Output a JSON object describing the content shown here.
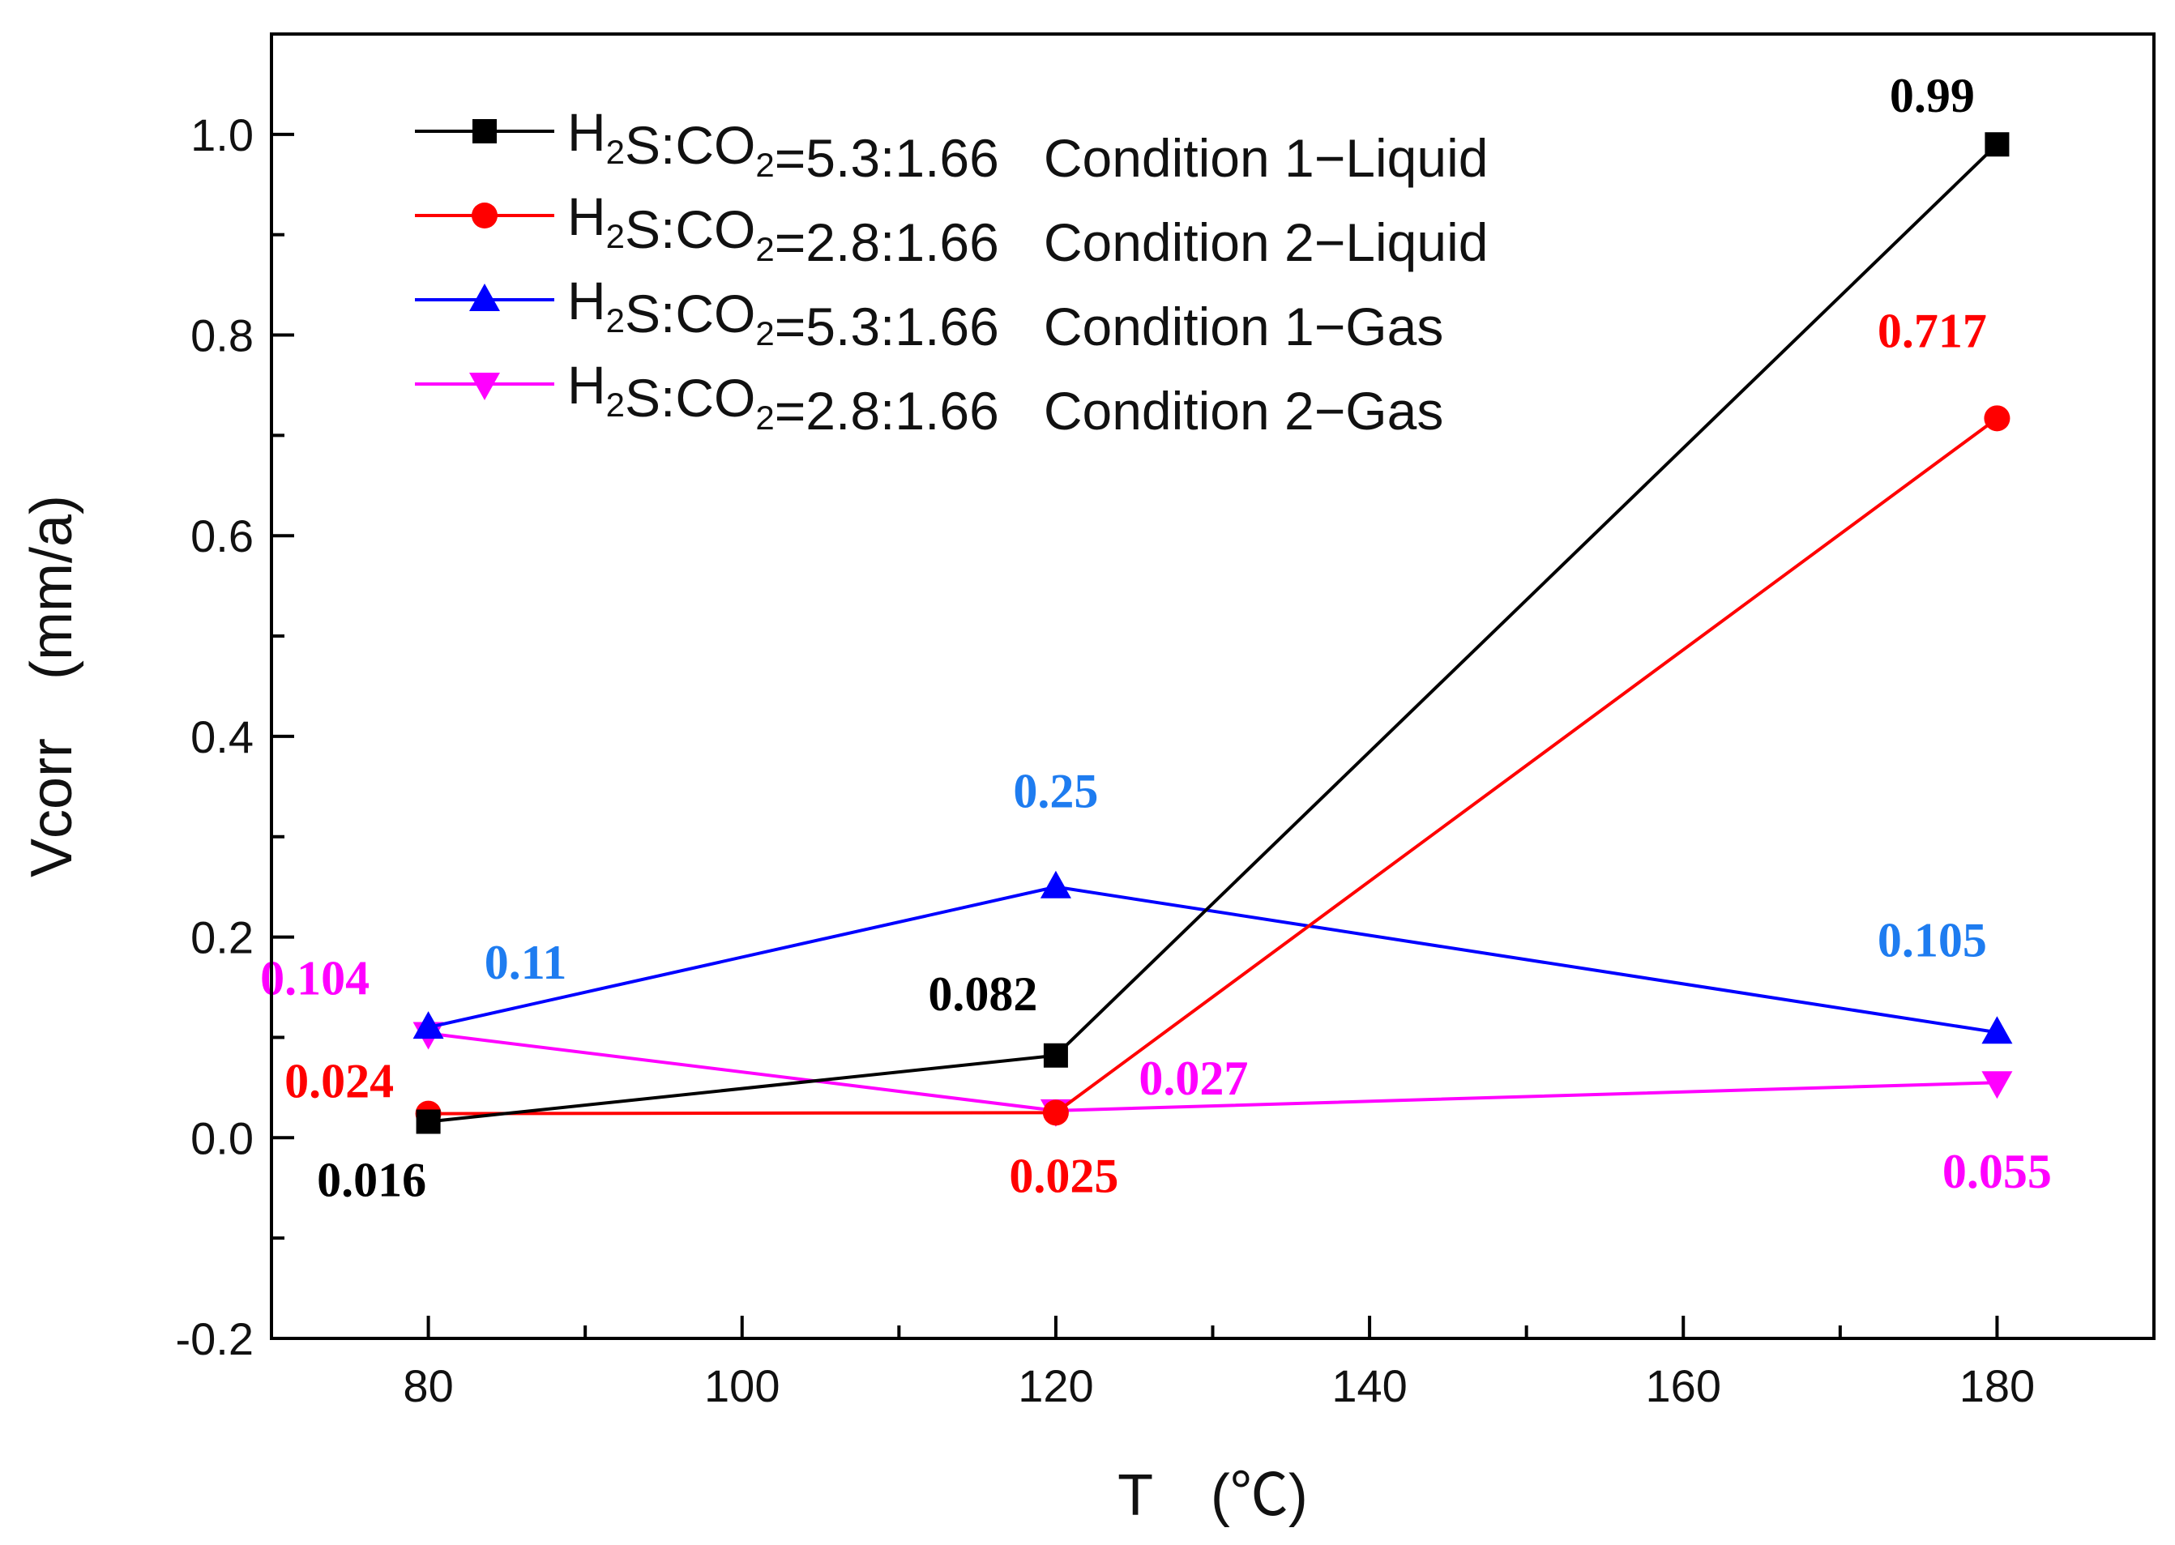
{
  "chart_data": {
    "type": "line",
    "title": "",
    "xlabel": "T　(℃)",
    "ylabel": "Vcorr　(mm/a)",
    "xlim": [
      70,
      190
    ],
    "ylim": [
      -0.2,
      1.1
    ],
    "xticks": [
      80,
      100,
      120,
      140,
      160,
      180
    ],
    "xtick_labels": [
      "80",
      "100",
      "120",
      "140",
      "160",
      "180"
    ],
    "yticks": [
      -0.2,
      0.0,
      0.2,
      0.4,
      0.6,
      0.8,
      1.0
    ],
    "ytick_labels": [
      "-0.2",
      "0.0",
      "0.2",
      "0.4",
      "0.6",
      "0.8",
      "1.0"
    ],
    "legend_position": "top-left",
    "x": [
      80,
      120,
      180
    ],
    "series": [
      {
        "name": "H2S:CO2=5.3:1.66   Condition 1−Liquid",
        "gas_ratio": "5.3:1.66",
        "condition": "Condition 1−Liquid",
        "color": "#000000",
        "label_color": "#000000",
        "marker": "square",
        "values": [
          0.016,
          0.082,
          0.99
        ],
        "labels": [
          "0.016",
          "0.082",
          "0.99"
        ]
      },
      {
        "name": "H2S:CO2=2.8:1.66   Condition 2−Liquid",
        "gas_ratio": "2.8:1.66",
        "condition": "Condition 2−Liquid",
        "color": "#ff0000",
        "label_color": "#ff0000",
        "marker": "circle",
        "values": [
          0.024,
          0.025,
          0.717
        ],
        "labels": [
          "0.024",
          "0.025",
          "0.717"
        ]
      },
      {
        "name": "H2S:CO2=5.3:1.66   Condition 1−Gas",
        "gas_ratio": "5.3:1.66",
        "condition": "Condition 1−Gas",
        "color": "#0000ff",
        "label_color": "#1e7cf0",
        "marker": "triangle-up",
        "values": [
          0.11,
          0.25,
          0.105
        ],
        "labels": [
          "0.11",
          "0.25",
          "0.105"
        ]
      },
      {
        "name": "H2S:CO2=2.8:1.66   Condition 2−Gas",
        "gas_ratio": "2.8:1.66",
        "condition": "Condition 2−Gas",
        "color": "#ff00ff",
        "label_color": "#ff00ff",
        "marker": "triangle-down",
        "values": [
          0.104,
          0.027,
          0.055
        ],
        "labels": [
          "0.104",
          "0.027",
          "0.055"
        ]
      }
    ]
  }
}
